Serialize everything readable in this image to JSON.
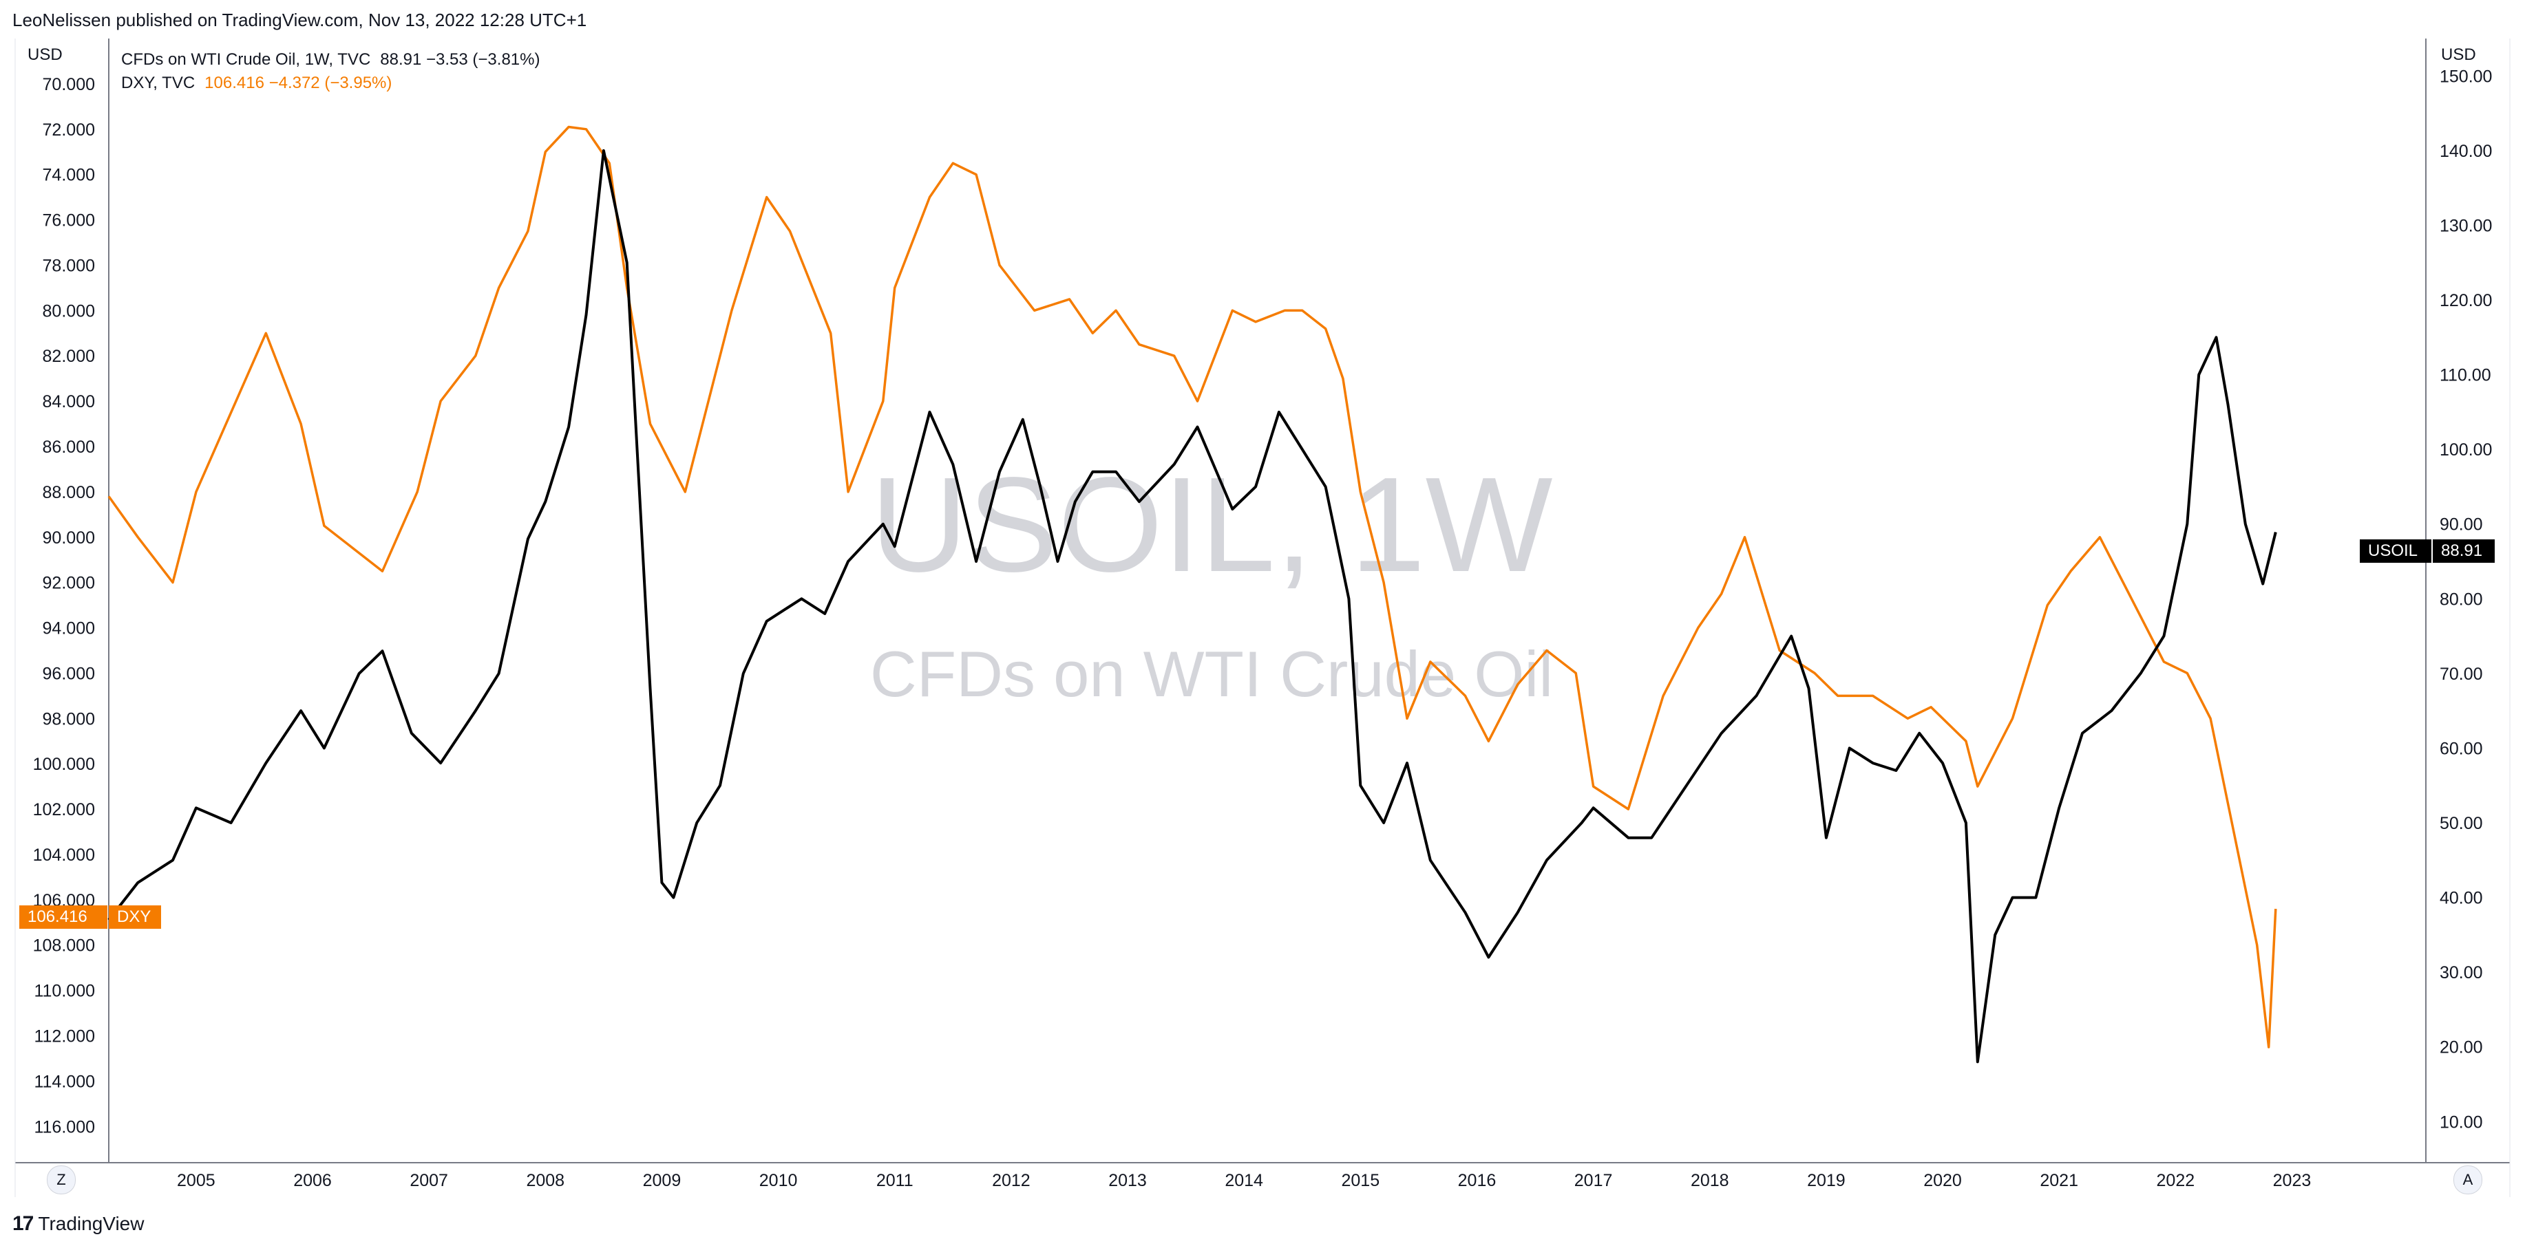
{
  "header": {
    "published": "LeoNelissen published on TradingView.com, Nov 13, 2022 12:28 UTC+1"
  },
  "legend": {
    "oil": {
      "name": "CFDs on WTI Crude Oil, 1W, TVC",
      "values": "88.91  −3.53 (−3.81%)"
    },
    "dxy": {
      "name": "DXY, TVC",
      "values": "106.416  −4.372 (−3.95%)"
    }
  },
  "watermark": {
    "symbol": "USOIL, 1W",
    "description": "CFDs on WTI Crude Oil"
  },
  "badges": {
    "oil_symbol": "USOIL",
    "oil_price": "88.91",
    "dxy_price": "106.416",
    "dxy_symbol": "DXY"
  },
  "left_axis_unit": "USD",
  "right_axis_unit": "USD",
  "buttons": {
    "left": "Z",
    "right": "A"
  },
  "footer": {
    "brand": "TradingView"
  },
  "colors": {
    "oil": "#000000",
    "dxy": "#f57c00",
    "axis": "#787b86"
  },
  "chart_data": {
    "type": "line",
    "x_ticks": [
      "2005",
      "2006",
      "2007",
      "2008",
      "2009",
      "2010",
      "2011",
      "2012",
      "2013",
      "2014",
      "2015",
      "2016",
      "2017",
      "2018",
      "2019",
      "2020",
      "2021",
      "2022",
      "2023"
    ],
    "left_axis": {
      "unit": "USD",
      "inverted": true,
      "range": [
        68.0,
        117.6
      ],
      "ticks": [
        "70.000",
        "72.000",
        "74.000",
        "76.000",
        "78.000",
        "80.000",
        "82.000",
        "84.000",
        "86.000",
        "88.000",
        "90.000",
        "92.000",
        "94.000",
        "96.000",
        "98.000",
        "100.000",
        "102.000",
        "104.000",
        "106.000",
        "108.000",
        "110.000",
        "112.000",
        "114.000",
        "116.000"
      ]
    },
    "right_axis": {
      "unit": "USD",
      "range": [
        4.5,
        155.0
      ],
      "ticks": [
        "150.00",
        "140.00",
        "130.00",
        "120.00",
        "110.00",
        "100.00",
        "90.00",
        "80.00",
        "70.00",
        "60.00",
        "50.00",
        "40.00",
        "30.00",
        "20.00",
        "10.00"
      ]
    },
    "series": [
      {
        "name": "DXY, TVC",
        "axis": "left",
        "color": "#f57c00",
        "x": [
          2004.25,
          2004.5,
          2004.8,
          2005.0,
          2005.3,
          2005.6,
          2005.9,
          2006.1,
          2006.35,
          2006.6,
          2006.9,
          2007.1,
          2007.4,
          2007.6,
          2007.85,
          2008.0,
          2008.2,
          2008.35,
          2008.55,
          2008.7,
          2008.9,
          2009.2,
          2009.6,
          2009.9,
          2010.1,
          2010.45,
          2010.6,
          2010.9,
          2011.0,
          2011.3,
          2011.5,
          2011.7,
          2011.9,
          2012.2,
          2012.5,
          2012.7,
          2012.9,
          2013.1,
          2013.4,
          2013.6,
          2013.9,
          2014.1,
          2014.35,
          2014.5,
          2014.7,
          2014.85,
          2015.0,
          2015.2,
          2015.4,
          2015.6,
          2015.9,
          2016.1,
          2016.35,
          2016.6,
          2016.85,
          2017.0,
          2017.3,
          2017.6,
          2017.9,
          2018.1,
          2018.3,
          2018.6,
          2018.9,
          2019.1,
          2019.4,
          2019.7,
          2019.9,
          2020.2,
          2020.3,
          2020.6,
          2020.9,
          2021.1,
          2021.35,
          2021.6,
          2021.9,
          2022.1,
          2022.3,
          2022.5,
          2022.7,
          2022.8,
          2022.86
        ],
        "y": [
          88.2,
          90.0,
          92.0,
          88.0,
          84.5,
          81.0,
          85.0,
          89.5,
          90.5,
          91.5,
          88.0,
          84.0,
          82.0,
          79.0,
          76.5,
          73.0,
          71.9,
          72.0,
          73.5,
          79.0,
          85.0,
          88.0,
          80.0,
          75.0,
          76.5,
          81.0,
          88.0,
          84.0,
          79.0,
          75.0,
          73.5,
          74.0,
          78.0,
          80.0,
          79.5,
          81.0,
          80.0,
          81.5,
          82.0,
          84.0,
          80.0,
          80.5,
          80.0,
          80.0,
          80.8,
          83.0,
          88.0,
          92.0,
          98.0,
          95.5,
          97.0,
          99.0,
          96.5,
          95.0,
          96.0,
          101.0,
          102.0,
          97.0,
          94.0,
          92.5,
          90.0,
          95.0,
          96.0,
          97.0,
          97.0,
          98.0,
          97.5,
          99.0,
          101.0,
          98.0,
          93.0,
          91.5,
          90.0,
          92.5,
          95.5,
          96.0,
          98.0,
          103.0,
          108.0,
          112.5,
          106.4
        ]
      },
      {
        "name": "CFDs on WTI Crude Oil, 1W, TVC",
        "axis": "right",
        "color": "#000000",
        "x": [
          2004.25,
          2004.5,
          2004.8,
          2005.0,
          2005.3,
          2005.6,
          2005.9,
          2006.1,
          2006.4,
          2006.6,
          2006.85,
          2007.1,
          2007.4,
          2007.6,
          2007.85,
          2008.0,
          2008.2,
          2008.35,
          2008.5,
          2008.7,
          2008.9,
          2009.0,
          2009.1,
          2009.3,
          2009.5,
          2009.7,
          2009.9,
          2010.2,
          2010.4,
          2010.6,
          2010.9,
          2011.0,
          2011.3,
          2011.5,
          2011.7,
          2011.9,
          2012.1,
          2012.25,
          2012.4,
          2012.55,
          2012.7,
          2012.9,
          2013.1,
          2013.4,
          2013.6,
          2013.9,
          2014.1,
          2014.3,
          2014.5,
          2014.7,
          2014.9,
          2015.0,
          2015.2,
          2015.4,
          2015.6,
          2015.9,
          2016.1,
          2016.35,
          2016.6,
          2016.9,
          2017.0,
          2017.3,
          2017.5,
          2017.8,
          2018.1,
          2018.4,
          2018.7,
          2018.85,
          2019.0,
          2019.2,
          2019.4,
          2019.6,
          2019.8,
          2020.0,
          2020.2,
          2020.3,
          2020.45,
          2020.6,
          2020.8,
          2021.0,
          2021.2,
          2021.45,
          2021.7,
          2021.9,
          2022.1,
          2022.2,
          2022.35,
          2022.45,
          2022.6,
          2022.75,
          2022.86
        ],
        "y": [
          37,
          42,
          45,
          52,
          50,
          58,
          65,
          60,
          70,
          73,
          62,
          58,
          65,
          70,
          88,
          93,
          103,
          118,
          140,
          125,
          68,
          42,
          40,
          50,
          55,
          70,
          77,
          80,
          78,
          85,
          90,
          87,
          105,
          98,
          85,
          97,
          104,
          95,
          85,
          93,
          97,
          97,
          93,
          98,
          103,
          92,
          95,
          105,
          100,
          95,
          80,
          55,
          50,
          58,
          45,
          38,
          32,
          38,
          45,
          50,
          52,
          48,
          48,
          55,
          62,
          67,
          75,
          68,
          48,
          60,
          58,
          57,
          62,
          58,
          50,
          18,
          35,
          40,
          40,
          52,
          62,
          65,
          70,
          75,
          90,
          110,
          115,
          106,
          90,
          82,
          88.91
        ]
      }
    ]
  }
}
